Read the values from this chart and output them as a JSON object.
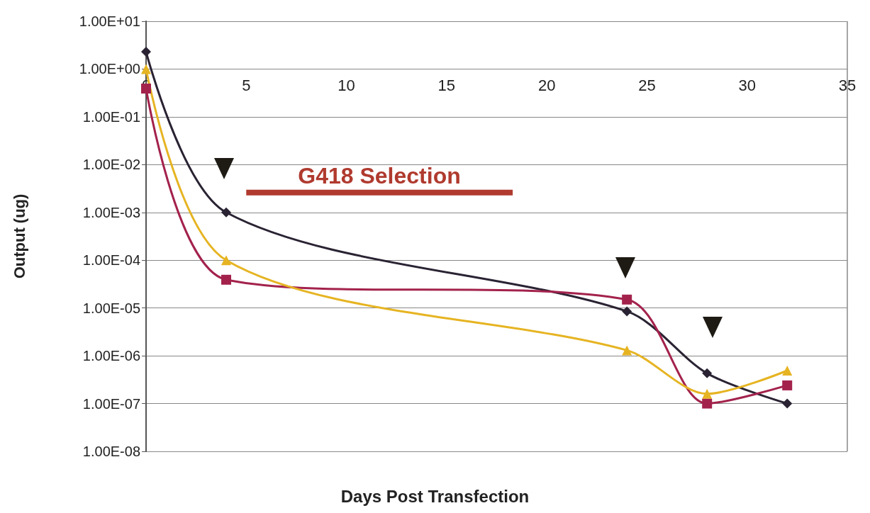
{
  "chart_data": {
    "type": "line",
    "xlabel": "Days Post Transfection",
    "ylabel": "Output (ug)",
    "x": [
      0,
      4,
      24,
      28,
      32
    ],
    "series": [
      {
        "color": "#2a2333",
        "marker": "diamond",
        "values": [
          2.3,
          0.001,
          8.5e-06,
          4.3e-07,
          1e-07
        ]
      },
      {
        "color": "#a3224c",
        "marker": "square",
        "values": [
          0.39,
          3.9e-05,
          1.5e-05,
          1e-07,
          2.4e-07
        ]
      },
      {
        "color": "#e6b422",
        "marker": "triangle",
        "values": [
          1,
          0.0001,
          1.3e-06,
          1.6e-07,
          4.9e-07
        ]
      },
      {
        "color": "#b03a2e",
        "marker": "none",
        "x": [
          5,
          18.3
        ],
        "values": [
          0.0026,
          0.0026
        ]
      }
    ],
    "log": "y",
    "xlim": [
      0,
      35
    ],
    "xticks": [
      0,
      5,
      10,
      15,
      20,
      25,
      30,
      35
    ],
    "ylim": [
      1e-08,
      10
    ],
    "yticks": [
      {
        "value": 10,
        "label": "1.00E+01"
      },
      {
        "value": 1,
        "label": "1.00E+00"
      },
      {
        "value": 0.1,
        "label": "1.00E-01"
      },
      {
        "value": 0.01,
        "label": "1.00E-02"
      },
      {
        "value": 0.001,
        "label": "1.00E-03"
      },
      {
        "value": 0.0001,
        "label": "1.00E-04"
      },
      {
        "value": 1e-05,
        "label": "1.00E-05"
      },
      {
        "value": 1e-06,
        "label": "1.00E-06"
      },
      {
        "value": 1e-07,
        "label": "1.00E-07"
      },
      {
        "value": 1e-08,
        "label": "1.00E-08"
      }
    ],
    "grid": "y",
    "annotations": [
      "G418 Selection"
    ]
  }
}
